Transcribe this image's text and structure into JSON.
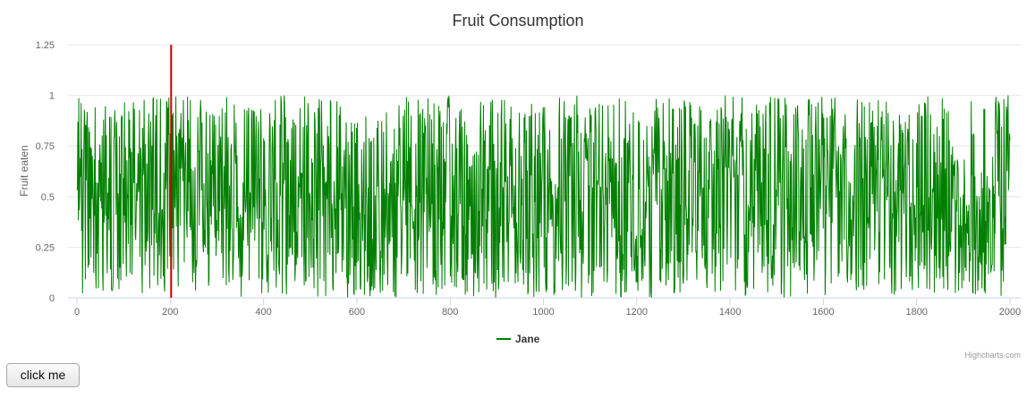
{
  "chart_data": {
    "type": "line",
    "title": "Fruit Consumption",
    "xlabel": "",
    "ylabel": "Fruit eaten",
    "xlim": [
      0,
      2000
    ],
    "ylim": [
      0,
      1.25
    ],
    "x_ticks": [
      "0",
      "200",
      "400",
      "600",
      "800",
      "1000",
      "1200",
      "1400",
      "1600",
      "1800",
      "2000"
    ],
    "y_ticks": [
      "0",
      "0.25",
      "0.5",
      "0.75",
      "1",
      "1.25"
    ],
    "x_tick_values": [
      0,
      200,
      400,
      600,
      800,
      1000,
      1200,
      1400,
      1600,
      1800,
      2000
    ],
    "y_tick_values": [
      0,
      0.25,
      0.5,
      0.75,
      1,
      1.25
    ],
    "grid": "horizontal",
    "legend_position": "bottom-center",
    "series": [
      {
        "name": "Jane",
        "color": "#008000",
        "point_count": 2000,
        "value_range": [
          0,
          1
        ],
        "pattern": "dense random noise between 0 and 1"
      }
    ],
    "plot_lines": [
      {
        "axis": "x",
        "value": 200,
        "color": "#cc0000"
      }
    ],
    "credits": "Highcharts.com"
  },
  "button": {
    "label": "click me"
  }
}
